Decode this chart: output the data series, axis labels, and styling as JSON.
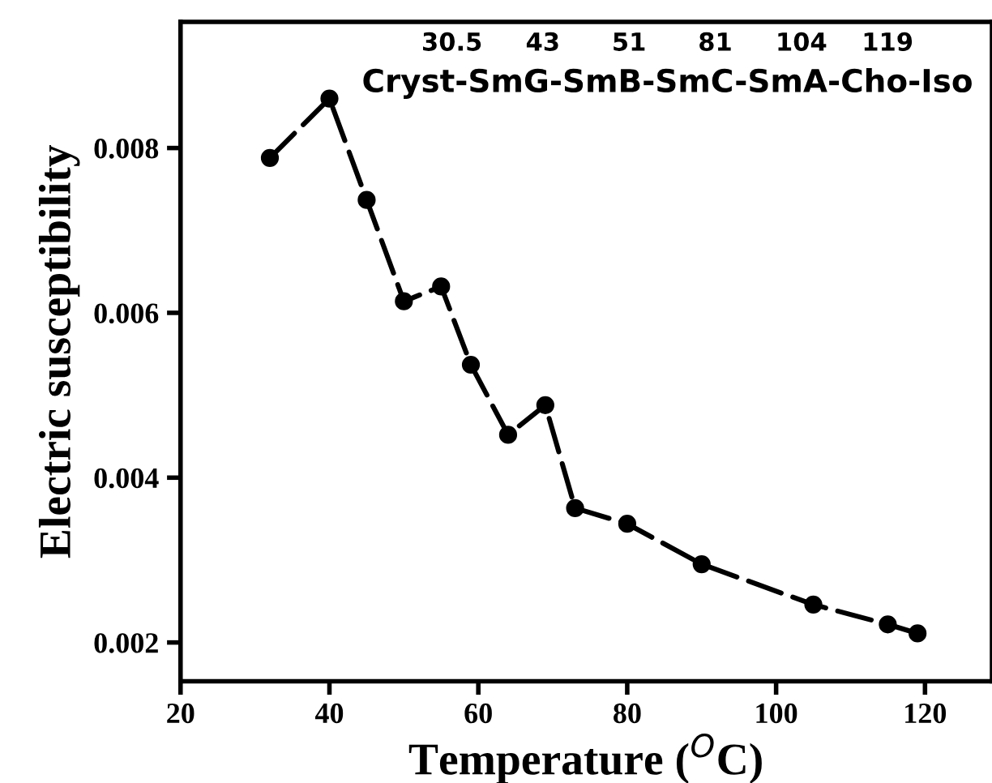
{
  "chart_data": {
    "type": "line",
    "xlabel": "Temperature ($^{O}$C)",
    "ylabel": "Electric susceptibility",
    "x": [
      32,
      40,
      45,
      50,
      55,
      59,
      64,
      69,
      73,
      80,
      90,
      105,
      115,
      119
    ],
    "series": [
      {
        "color": "#000000",
        "values": [
          0.00788,
          0.0086,
          0.00737,
          0.00614,
          0.00632,
          0.00537,
          0.00452,
          0.00488,
          0.00363,
          0.00344,
          0.00295,
          0.00246,
          0.00222,
          0.00211
        ]
      }
    ],
    "annotations": [
      "30.5     43      51      81     104    119",
      "Cryst-SmG-SmB-SmC-SmA-Cho-Iso"
    ],
    "xlim": [
      20,
      129
    ],
    "ylim": [
      0.00153,
      0.00953
    ],
    "xticks": [
      20,
      40,
      60,
      80,
      100,
      120
    ],
    "yticks": [
      0.002,
      0.004,
      0.006,
      0.008
    ],
    "marker": "circle",
    "line_style": "dashed",
    "grid": false,
    "legend": false
  }
}
